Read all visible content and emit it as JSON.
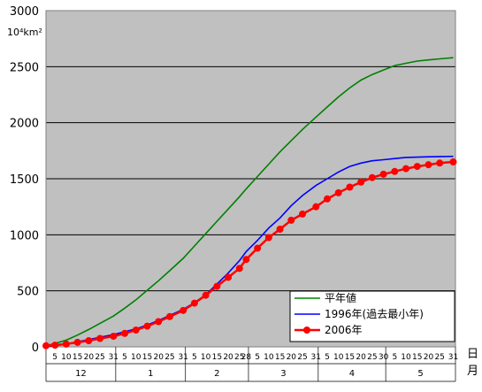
{
  "chart_data": {
    "type": "line",
    "unit_label": "10⁴km²",
    "ylim": [
      0,
      3000
    ],
    "yticks": [
      0,
      500,
      1000,
      1500,
      2000,
      2500,
      3000
    ],
    "grid": true,
    "legend_position": "bottom-right",
    "x_axis": {
      "day_ticks": [
        [
          "5",
          "10",
          "15",
          "20",
          "25",
          "31"
        ],
        [
          "5",
          "10",
          "15",
          "20",
          "25",
          "31"
        ],
        [
          "5",
          "10",
          "15",
          "20",
          "25",
          "28"
        ],
        [
          "5",
          "10",
          "15",
          "20",
          "25",
          "31"
        ],
        [
          "5",
          "10",
          "15",
          "20",
          "25",
          "30"
        ],
        [
          "5",
          "10",
          "15",
          "20",
          "25",
          "31"
        ]
      ],
      "months": [
        "12",
        "1",
        "2",
        "3",
        "4",
        "5"
      ],
      "side_labels": [
        "日",
        "月"
      ]
    },
    "x": [
      "12/1",
      "12/5",
      "12/10",
      "12/15",
      "12/20",
      "12/25",
      "12/31",
      "1/5",
      "1/10",
      "1/15",
      "1/20",
      "1/25",
      "1/31",
      "2/5",
      "2/10",
      "2/15",
      "2/20",
      "2/25",
      "2/28",
      "3/5",
      "3/10",
      "3/15",
      "3/20",
      "3/25",
      "3/31",
      "4/5",
      "4/10",
      "4/15",
      "4/20",
      "4/25",
      "4/30",
      "5/5",
      "5/10",
      "5/15",
      "5/20",
      "5/25",
      "5/31"
    ],
    "series": [
      {
        "name": "平年値",
        "color": "#008000",
        "values": [
          10,
          30,
          60,
          105,
          155,
          210,
          275,
          345,
          420,
          505,
          590,
          680,
          790,
          900,
          1010,
          1120,
          1230,
          1340,
          1410,
          1520,
          1630,
          1740,
          1840,
          1940,
          2050,
          2140,
          2230,
          2310,
          2380,
          2430,
          2470,
          2510,
          2530,
          2550,
          2560,
          2570,
          2580
        ]
      },
      {
        "name": "1996年(過去最小年)",
        "color": "#0000ff",
        "values": [
          5,
          10,
          25,
          45,
          65,
          85,
          110,
          135,
          160,
          195,
          235,
          280,
          335,
          395,
          465,
          560,
          660,
          770,
          850,
          950,
          1060,
          1150,
          1260,
          1350,
          1440,
          1500,
          1560,
          1610,
          1640,
          1660,
          1670,
          1680,
          1690,
          1693,
          1696,
          1698,
          1700
        ]
      },
      {
        "name": "2006年",
        "color": "#ff0000",
        "values": [
          10,
          15,
          25,
          40,
          55,
          75,
          95,
          120,
          150,
          185,
          225,
          270,
          325,
          390,
          460,
          540,
          620,
          700,
          780,
          880,
          975,
          1050,
          1130,
          1185,
          1250,
          1320,
          1375,
          1425,
          1470,
          1510,
          1540,
          1565,
          1590,
          1610,
          1625,
          1640,
          1650
        ]
      }
    ]
  }
}
